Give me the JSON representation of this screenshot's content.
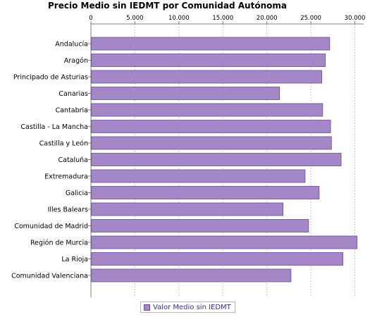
{
  "chart_data": {
    "type": "bar",
    "orientation": "horizontal",
    "title": "Precio Medio sin IEDMT por Comunidad Autónoma",
    "categories": [
      "Andalucía",
      "Aragón",
      "Principado de Asturias",
      "Canarias",
      "Cantabria",
      "Castilla - La Mancha",
      "Castilla y León",
      "Cataluña",
      "Extremadura",
      "Galicia",
      "Illes Balears",
      "Comunidad de Madrid",
      "Región de Murcia",
      "La Rioja",
      "Comunidad Valenciana"
    ],
    "series": [
      {
        "name": "Valor Medio sin IEDMT",
        "values": [
          27100,
          26600,
          26200,
          21400,
          26300,
          27200,
          27300,
          28400,
          24300,
          25900,
          21800,
          24700,
          30200,
          28600,
          22700
        ]
      }
    ],
    "xlim": [
      0,
      31000
    ],
    "x_ticks": [
      0,
      5000,
      10000,
      15000,
      20000,
      25000,
      30000
    ],
    "x_tick_labels": [
      "0",
      "5.000",
      "10.000",
      "15.000",
      "20.000",
      "25.000",
      "30.000"
    ],
    "axis_position": "top",
    "grid": true,
    "legend_position": "bottom",
    "colors": {
      "bar_fill": "#a487c7",
      "bar_stroke": "#6b4a9a",
      "grid": "#c8c8c8",
      "legend_text": "#333399"
    }
  }
}
